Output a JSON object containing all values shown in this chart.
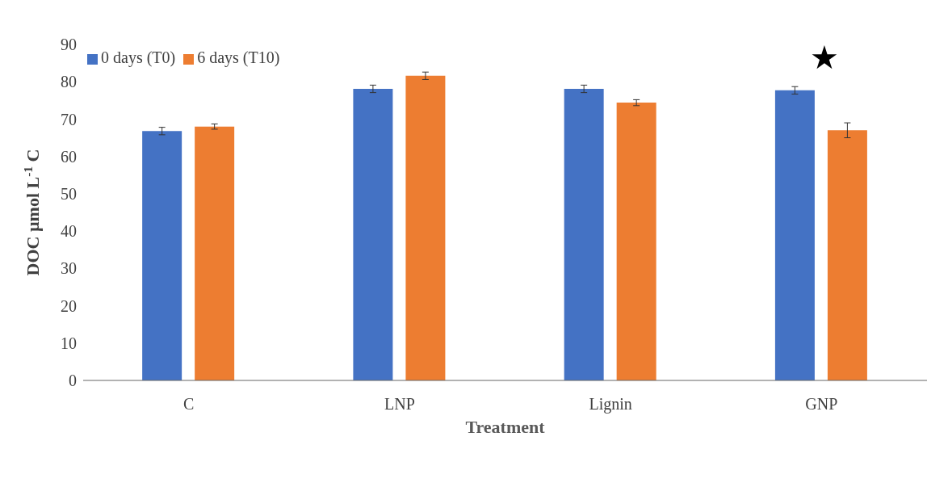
{
  "chart_data": {
    "type": "bar",
    "categories": [
      "C",
      "LNP",
      "Lignin",
      "GNP"
    ],
    "xlabel": "Treatment",
    "ylabel": "DOC µmol L$^{-1}$ C",
    "series": [
      {
        "name": "0 days (T0)",
        "color": "#4472c4",
        "values": [
          66.8,
          78.1,
          78.1,
          77.7
        ],
        "errors": [
          1,
          1,
          1,
          1
        ]
      },
      {
        "name": "6 days (T10)",
        "color": "#ed7d31",
        "values": [
          68.0,
          81.6,
          74.4,
          67.0
        ],
        "errors": [
          0.7,
          1,
          0.8,
          2
        ]
      }
    ],
    "ylim": [
      0,
      90
    ],
    "yticks": [
      0,
      10,
      20,
      30,
      40,
      50,
      60,
      70,
      80,
      90
    ],
    "grid": false,
    "legend": "top left",
    "annotations": [
      "★"
    ]
  }
}
